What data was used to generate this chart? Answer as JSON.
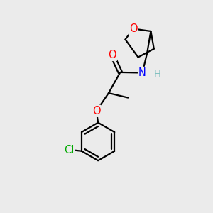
{
  "bg_color": "#ebebeb",
  "bond_color": "#000000",
  "bond_width": 1.6,
  "atom_colors": {
    "O": "#ff0000",
    "N": "#0000ff",
    "Cl": "#00aa00",
    "H": "#7fbfbf",
    "C": "#000000"
  },
  "font_size_atom": 10.5,
  "font_size_H": 9.5
}
